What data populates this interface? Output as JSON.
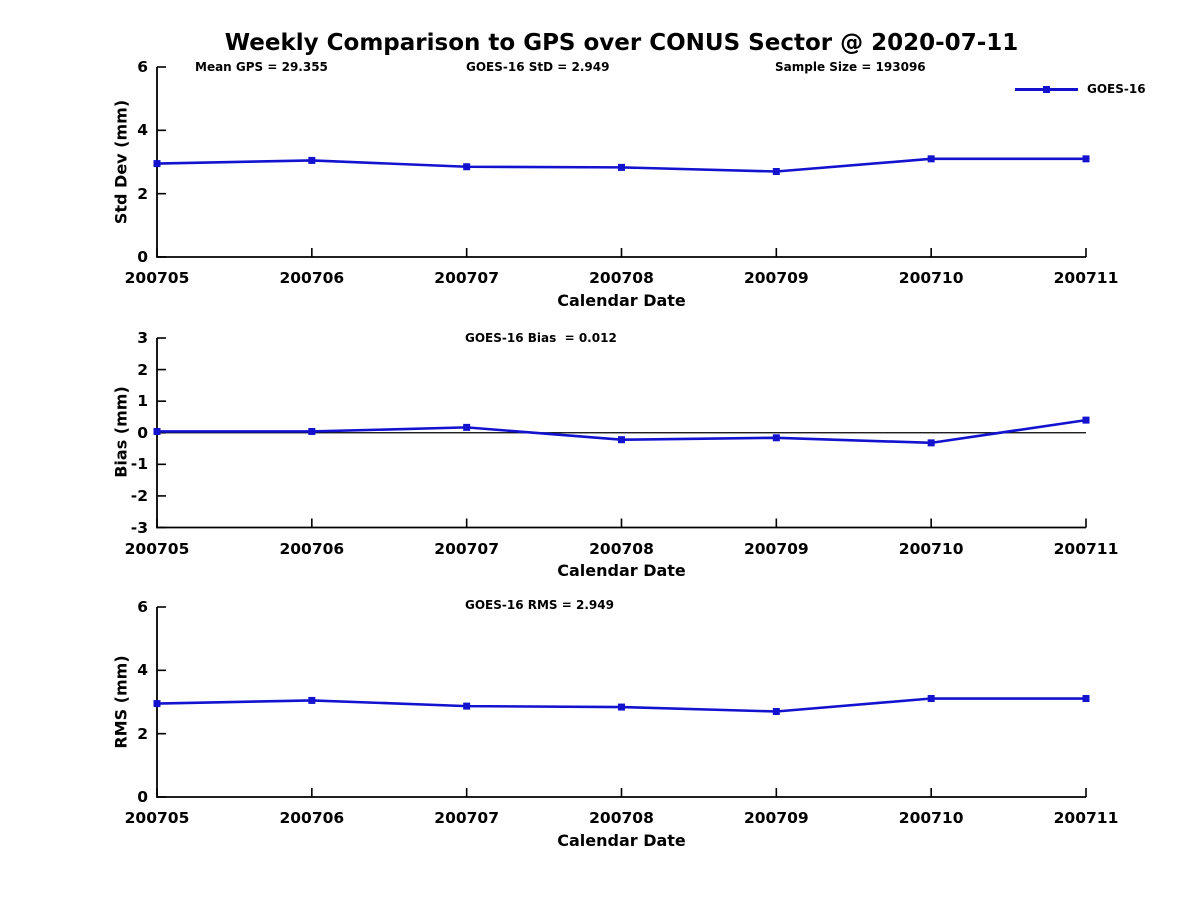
{
  "title": "Weekly Comparison to GPS over CONUS Sector @ 2020-07-11",
  "legend": {
    "series_label": "GOES-16"
  },
  "colors": {
    "line": "#1313cf",
    "axis": "#000000",
    "background": "#ffffff"
  },
  "chart_data": [
    {
      "id": "stddev",
      "type": "line",
      "annotations": {
        "left": "Mean GPS = 29.355",
        "center": "GOES-16 StD = 2.949",
        "right": "Sample Size = 193096"
      },
      "xlabel": "Calendar Date",
      "ylabel": "Std Dev (mm)",
      "categories": [
        "200705",
        "200706",
        "200707",
        "200708",
        "200709",
        "200710",
        "200711"
      ],
      "series": [
        {
          "name": "GOES-16",
          "values": [
            2.95,
            3.05,
            2.85,
            2.83,
            2.7,
            3.1,
            3.1
          ]
        }
      ],
      "ylim": [
        0,
        6
      ],
      "yticks": [
        0,
        2,
        4,
        6
      ],
      "grid": false,
      "legend_position": "upper-right-outside"
    },
    {
      "id": "bias",
      "type": "line",
      "annotations": {
        "center": "GOES-16 Bias  = 0.012"
      },
      "xlabel": "Calendar Date",
      "ylabel": "Bias (mm)",
      "categories": [
        "200705",
        "200706",
        "200707",
        "200708",
        "200709",
        "200710",
        "200711"
      ],
      "series": [
        {
          "name": "GOES-16",
          "values": [
            0.04,
            0.04,
            0.17,
            -0.22,
            -0.16,
            -0.32,
            0.4
          ]
        }
      ],
      "ylim": [
        -3,
        3
      ],
      "yticks": [
        -3,
        -2,
        -1,
        0,
        1,
        2,
        3
      ],
      "zero_line": true,
      "grid": false
    },
    {
      "id": "rms",
      "type": "line",
      "annotations": {
        "center": "GOES-16 RMS = 2.949"
      },
      "xlabel": "Calendar Date",
      "ylabel": "RMS (mm)",
      "categories": [
        "200705",
        "200706",
        "200707",
        "200708",
        "200709",
        "200710",
        "200711"
      ],
      "series": [
        {
          "name": "GOES-16",
          "values": [
            2.95,
            3.05,
            2.87,
            2.84,
            2.7,
            3.11,
            3.11
          ]
        }
      ],
      "ylim": [
        0,
        6
      ],
      "yticks": [
        0,
        2,
        4,
        6
      ],
      "grid": false
    }
  ]
}
